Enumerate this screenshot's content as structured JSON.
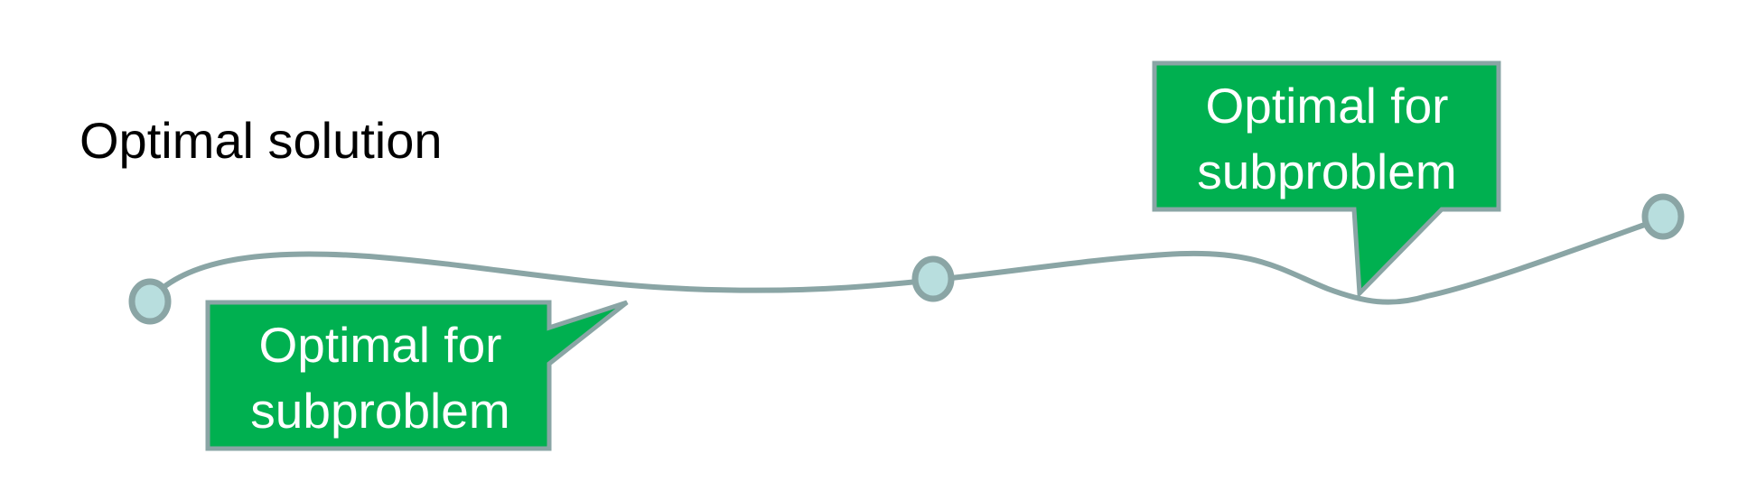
{
  "title": "Optimal solution",
  "callouts": [
    {
      "text": "Optimal for\nsubproblem"
    },
    {
      "text": "Optimal for\nsubproblem"
    }
  ],
  "colors": {
    "path": "#8aa5a5",
    "node_fill": "#b8dede",
    "node_stroke": "#8aa5a5",
    "callout_fill": "#00b050",
    "callout_stroke": "#8aa5a5",
    "callout_text": "#ffffff",
    "title_text": "#000000"
  }
}
